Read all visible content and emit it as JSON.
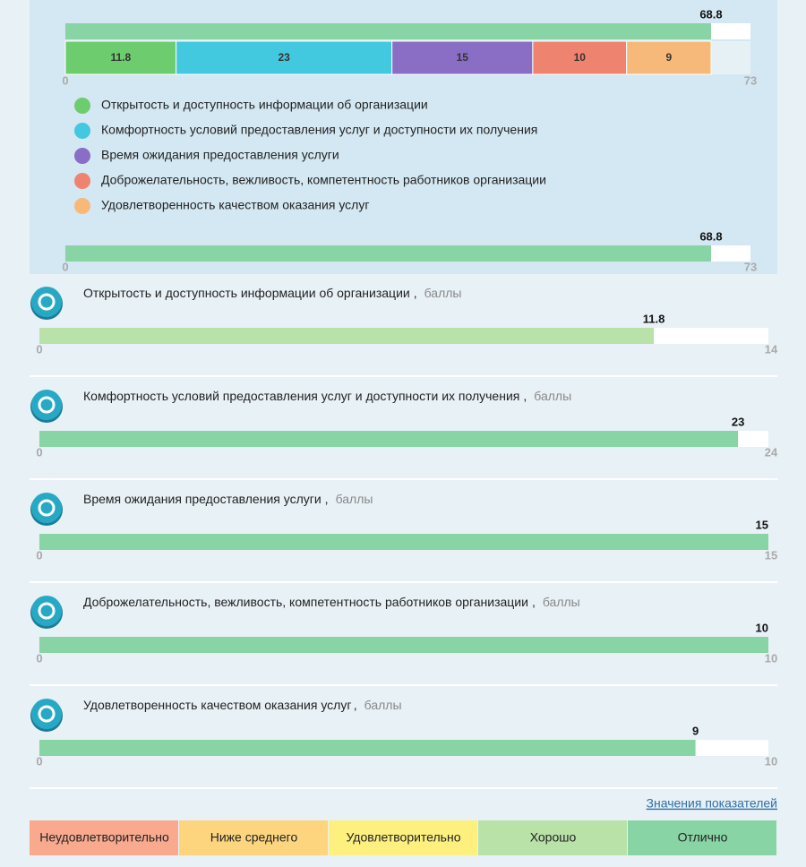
{
  "total": {
    "value": 68.8,
    "min": 0,
    "max": 73
  },
  "indicators": [
    {
      "name": "Открытость и доступность информации об организации",
      "value": 11.8,
      "min": 0,
      "max": 14,
      "color": "#6dcc6d",
      "bar_color": "#b8e2a8"
    },
    {
      "name": "Комфортность условий предоставления услуг и доступности их получения",
      "value": 23,
      "min": 0,
      "max": 24,
      "color": "#42c8df",
      "bar_color": "#88d4a4"
    },
    {
      "name": "Время ожидания предоставления услуги",
      "value": 15,
      "min": 0,
      "max": 15,
      "color": "#8a6dc4",
      "bar_color": "#88d4a4"
    },
    {
      "name": "Доброжелательность, вежливость, компетентность работников организации",
      "value": 10,
      "min": 0,
      "max": 10,
      "color": "#ee8470",
      "bar_color": "#88d4a4"
    },
    {
      "name": "Удовлетворенность качеством оказания услуг",
      "value": 9,
      "min": 0,
      "max": 10,
      "color": "#f7b97a",
      "bar_color": "#88d4a4"
    }
  ],
  "separator": ",",
  "unit": "баллы",
  "link": "Значения показателей",
  "rating_scale": [
    {
      "label": "Неудовлетворительно",
      "color": "#f9a98e"
    },
    {
      "label": "Ниже среднего",
      "color": "#fdd57e"
    },
    {
      "label": "Удовлетворительно",
      "color": "#fdf07f"
    },
    {
      "label": "Хорошо",
      "color": "#b8e2a8"
    },
    {
      "label": "Отлично",
      "color": "#88d4a4"
    }
  ]
}
